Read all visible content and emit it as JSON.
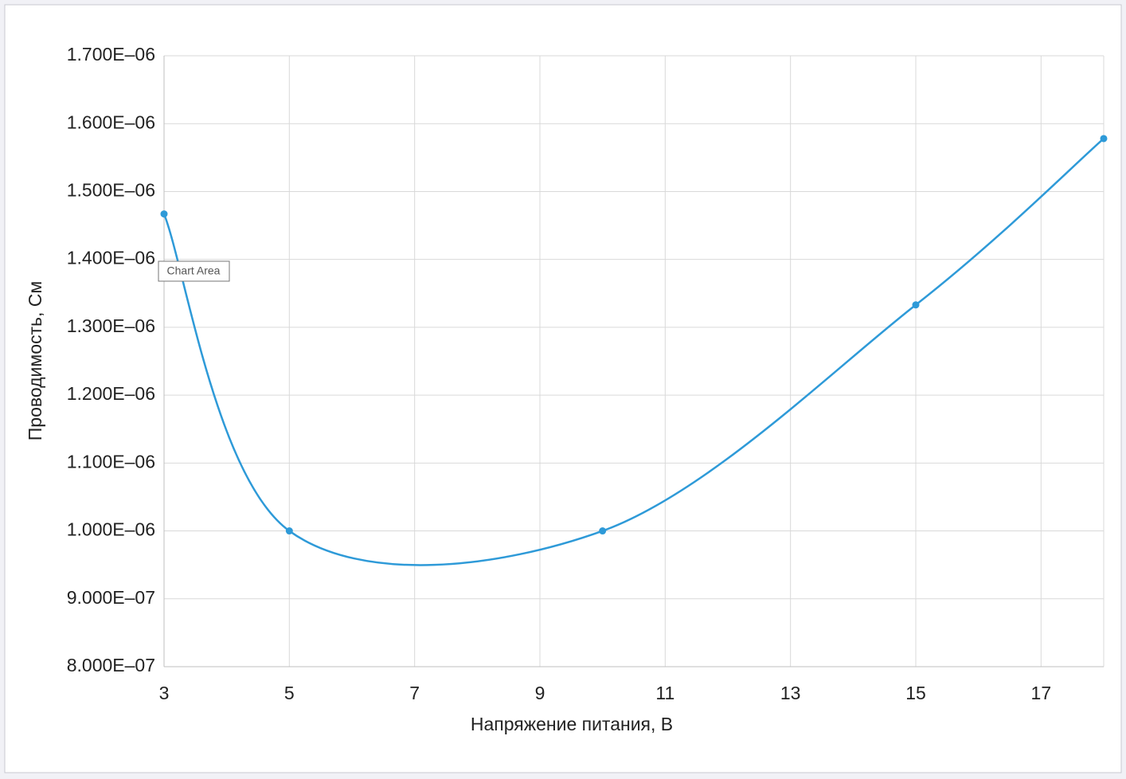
{
  "chart_data": {
    "type": "line",
    "x_label": "Напряжение питания, В",
    "y_label": "Проводимость, См",
    "tooltip": "Chart Area",
    "x": [
      3,
      5,
      10,
      15,
      18
    ],
    "series": [
      {
        "color": "#2e9ad8",
        "values": [
          1.467e-06,
          1e-06,
          1e-06,
          1.333e-06,
          1.578e-06
        ]
      }
    ],
    "smooth": true,
    "markers": true,
    "xlim": [
      3,
      18
    ],
    "xticks": [
      3,
      5,
      7,
      9,
      11,
      13,
      15,
      17
    ],
    "ylim": [
      8e-07,
      1.7e-06
    ],
    "yticks": [
      {
        "value": 8e-07,
        "label": "8.000E–07"
      },
      {
        "value": 9e-07,
        "label": "9.000E–07"
      },
      {
        "value": 1e-06,
        "label": "1.000E–06"
      },
      {
        "value": 1.1e-06,
        "label": "1.100E–06"
      },
      {
        "value": 1.2e-06,
        "label": "1.200E–06"
      },
      {
        "value": 1.3e-06,
        "label": "1.300E–06"
      },
      {
        "value": 1.4e-06,
        "label": "1.400E–06"
      },
      {
        "value": 1.5e-06,
        "label": "1.500E–06"
      },
      {
        "value": 1.6e-06,
        "label": "1.600E–06"
      },
      {
        "value": 1.7e-06,
        "label": "1.700E–06"
      }
    ],
    "grid": true
  }
}
